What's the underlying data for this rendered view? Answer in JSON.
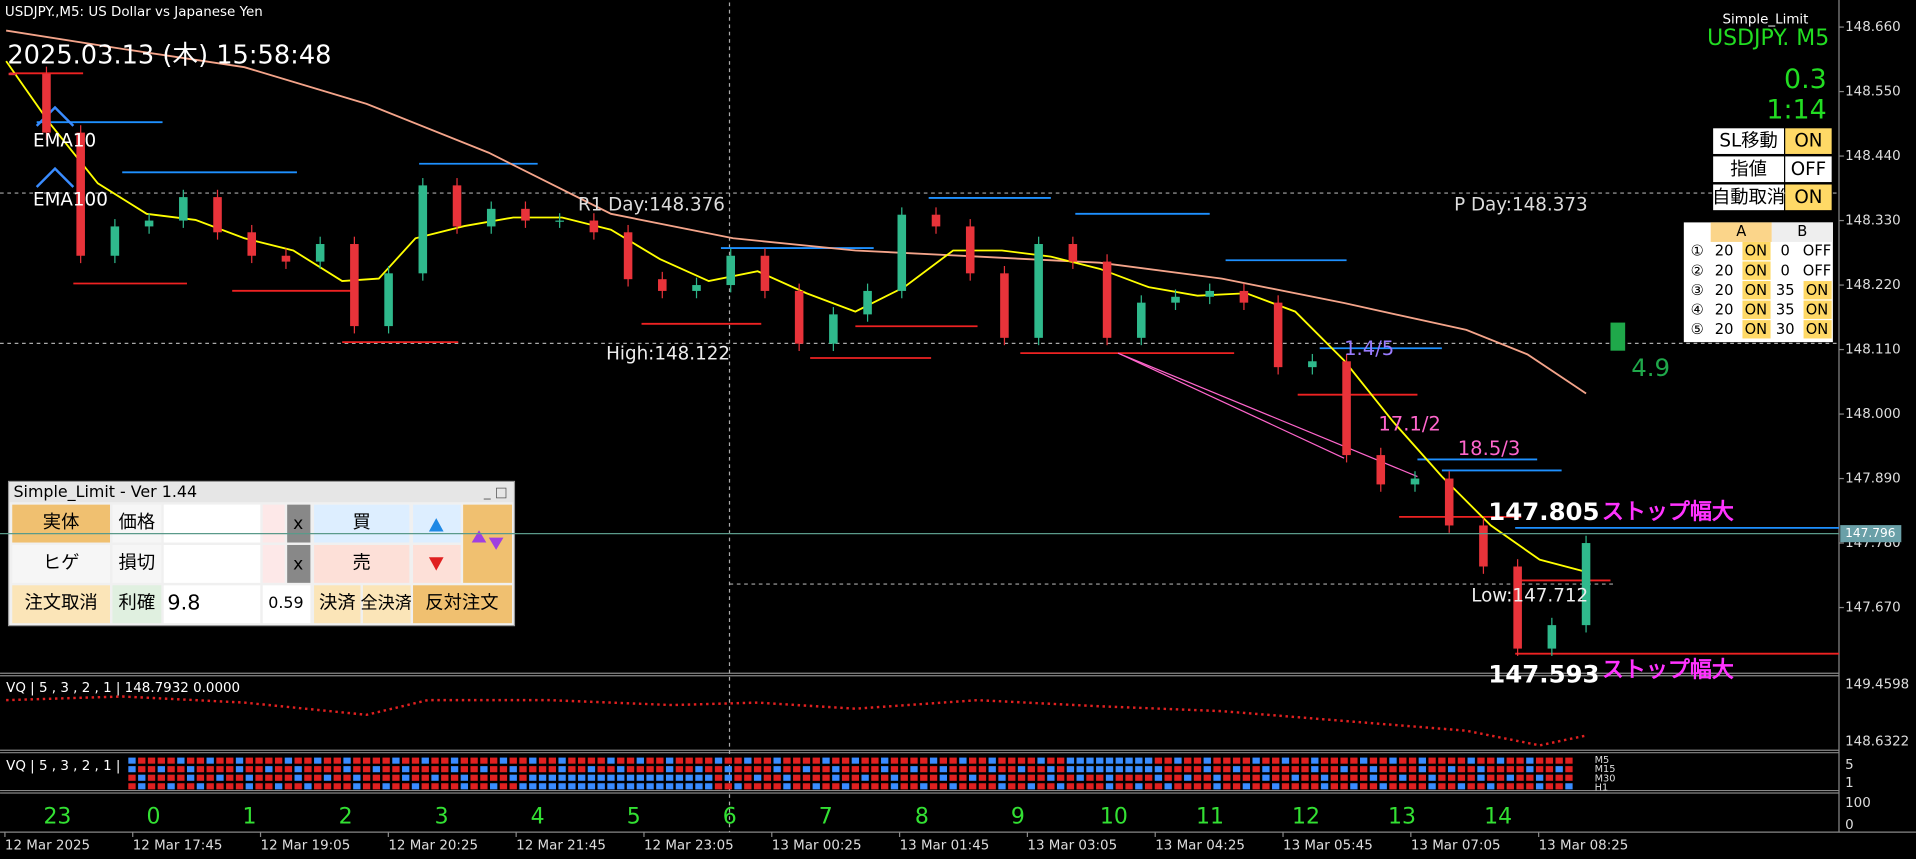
{
  "header": {
    "symbol_title": "USDJPY.,M5:  US Dollar vs Japanese Yen",
    "datetime": "2025.03.13 (木) 15:58:48"
  },
  "chart_data": {
    "type": "candlestick",
    "values": [
      148.58,
      148.48,
      148.27,
      148.32,
      148.33,
      148.37,
      148.31,
      148.27,
      148.26,
      148.29,
      148.15,
      148.24,
      148.39,
      148.32,
      148.35,
      148.33,
      148.33,
      148.31,
      148.23,
      148.21,
      148.22,
      148.27,
      148.21,
      148.12,
      148.17,
      148.21,
      148.34,
      148.32,
      148.24,
      148.13,
      148.29,
      148.26,
      148.13,
      148.19,
      148.2,
      148.21,
      148.19,
      148.08,
      148.09,
      147.93,
      147.88,
      147.89,
      147.81,
      147.74,
      147.6,
      147.64,
      147.78
    ],
    "ylim": [
      147.56,
      148.702
    ],
    "yticks": [
      {
        "value": 148.66,
        "label": "148.660"
      },
      {
        "value": 148.55,
        "label": "148.550"
      },
      {
        "value": 148.44,
        "label": "148.440"
      },
      {
        "value": 148.33,
        "label": "148.330"
      },
      {
        "value": 148.22,
        "label": "148.220"
      },
      {
        "value": 148.11,
        "label": "148.110"
      },
      {
        "value": 148,
        "label": "148.000"
      },
      {
        "value": 147.89,
        "label": "147.890"
      },
      {
        "value": 147.78,
        "label": "147.780"
      },
      {
        "value": 147.67,
        "label": "147.670"
      }
    ],
    "current_price": 147.796,
    "up_color": "#2fb98c",
    "down_color": "#e8333a"
  },
  "labels": {
    "ema10": "EMA10",
    "ema100": "EMA100",
    "r1": "R1 Day:148.376",
    "pivot": "P Day:148.373",
    "high": "High:148.122",
    "low": "Low:147.712",
    "stop1_price": 147.805,
    "stop1_text": "ストップ幅大",
    "stop2_price": 147.593,
    "stop2_text": "ストップ幅大",
    "mark1": "1.4/5",
    "mark2": "17.1/2",
    "mark3": "18.5/3"
  },
  "status": {
    "ea": "Simple_Limit",
    "symbol": "USDJPY.  M5",
    "spread": 0.3,
    "timer": "1:14",
    "gauge": 4.9
  },
  "toggles": [
    {
      "label": "SL移動",
      "state": "ON"
    },
    {
      "label": "指値",
      "state": "OFF"
    },
    {
      "label": "自動取消",
      "state": "ON"
    }
  ],
  "grid_table": {
    "columns": [
      "A",
      "B"
    ],
    "rows": [
      [
        "①",
        20,
        "ON",
        0,
        "OFF"
      ],
      [
        "②",
        20,
        "ON",
        0,
        "OFF"
      ],
      [
        "③",
        20,
        "ON",
        35,
        "ON"
      ],
      [
        "④",
        20,
        "ON",
        35,
        "ON"
      ],
      [
        "⑤",
        20,
        "ON",
        30,
        "ON"
      ]
    ]
  },
  "panel": {
    "title": "Simple_Limit - Ver 1.44",
    "body_btn": "実体",
    "price_label": "価格",
    "buy": "買",
    "wick_btn": "ヒゲ",
    "sl_label": "損切",
    "sell": "売",
    "clear_x1": "x",
    "clear_x2": "x",
    "cancel": "注文取消",
    "tp_label": "利確",
    "tp_value": 9.8,
    "tp_aux": 0.59,
    "close": "決済",
    "close_all": "全決済",
    "reverse": "反対注文"
  },
  "indicators": {
    "vq1": "VQ | 5 , 3 , 2 , 1 | 148.7932 0.0000",
    "vq1_ticks": [
      "149.4598",
      "148.6322"
    ],
    "vq2": "VQ | 5 , 3 , 2 , 1 |",
    "vq2_frames": [
      "M5",
      "M15",
      "M30",
      "H1"
    ],
    "vq2_ticks": [
      5,
      1
    ],
    "vq3_ticks": [
      100,
      0
    ]
  },
  "time_axis": {
    "hours": [
      23,
      0,
      1,
      2,
      3,
      4,
      5,
      6,
      7,
      8,
      9,
      10,
      11,
      12,
      13,
      14
    ],
    "dates": [
      "12 Mar 2025",
      "12 Mar 17:45",
      "12 Mar 19:05",
      "12 Mar 20:25",
      "12 Mar 21:45",
      "12 Mar 23:05",
      "13 Mar 00:25",
      "13 Mar 01:45",
      "13 Mar 03:05",
      "13 Mar 04:25",
      "13 Mar 05:45",
      "13 Mar 07:05",
      "13 Mar 08:25"
    ]
  }
}
